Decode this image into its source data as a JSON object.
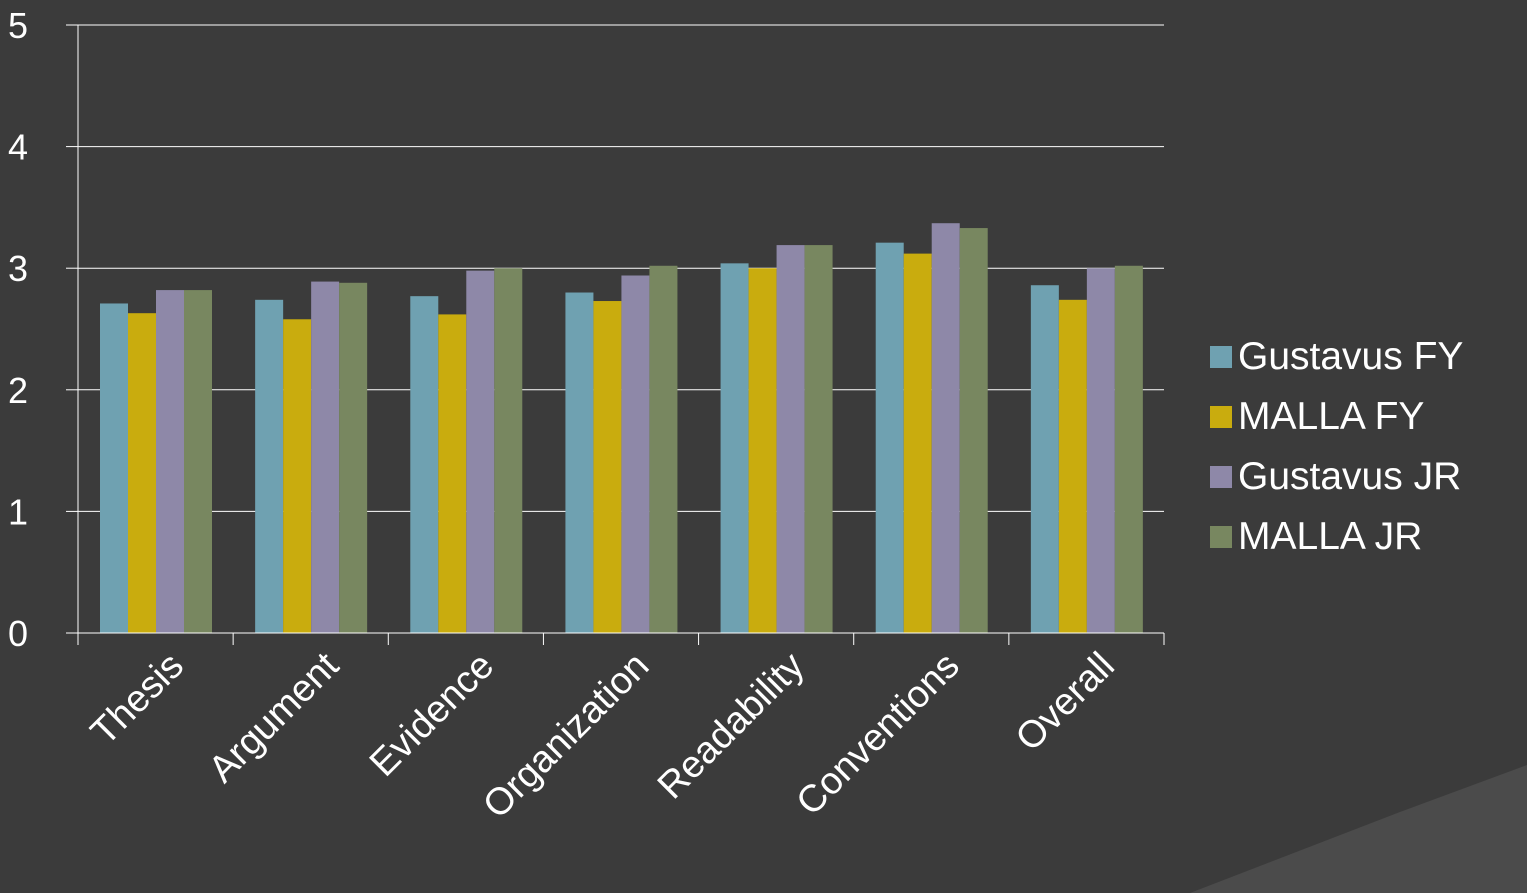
{
  "chart_data": {
    "type": "bar",
    "title": "",
    "xlabel": "",
    "ylabel": "",
    "ylim": [
      0,
      5
    ],
    "yticks": [
      "0",
      "1",
      "2",
      "3",
      "4",
      "5"
    ],
    "grid": true,
    "legend_position": "right",
    "categories": [
      "Thesis",
      "Argument",
      "Evidence",
      "Organization",
      "Readability",
      "Conventions",
      "Overall"
    ],
    "series": [
      {
        "name": "Gustavus FY",
        "color": "#6fa1b1",
        "values": [
          2.71,
          2.74,
          2.77,
          2.8,
          3.04,
          3.21,
          2.86
        ]
      },
      {
        "name": "MALLA FY",
        "color": "#c9ac0e",
        "values": [
          2.63,
          2.58,
          2.62,
          2.73,
          3.0,
          3.12,
          2.74
        ]
      },
      {
        "name": "Gustavus JR",
        "color": "#8e88a8",
        "values": [
          2.82,
          2.89,
          2.98,
          2.94,
          3.19,
          3.37,
          3.0
        ]
      },
      {
        "name": "MALLA JR",
        "color": "#788760",
        "values": [
          2.82,
          2.88,
          3.0,
          3.02,
          3.19,
          3.33,
          3.02
        ]
      }
    ]
  }
}
